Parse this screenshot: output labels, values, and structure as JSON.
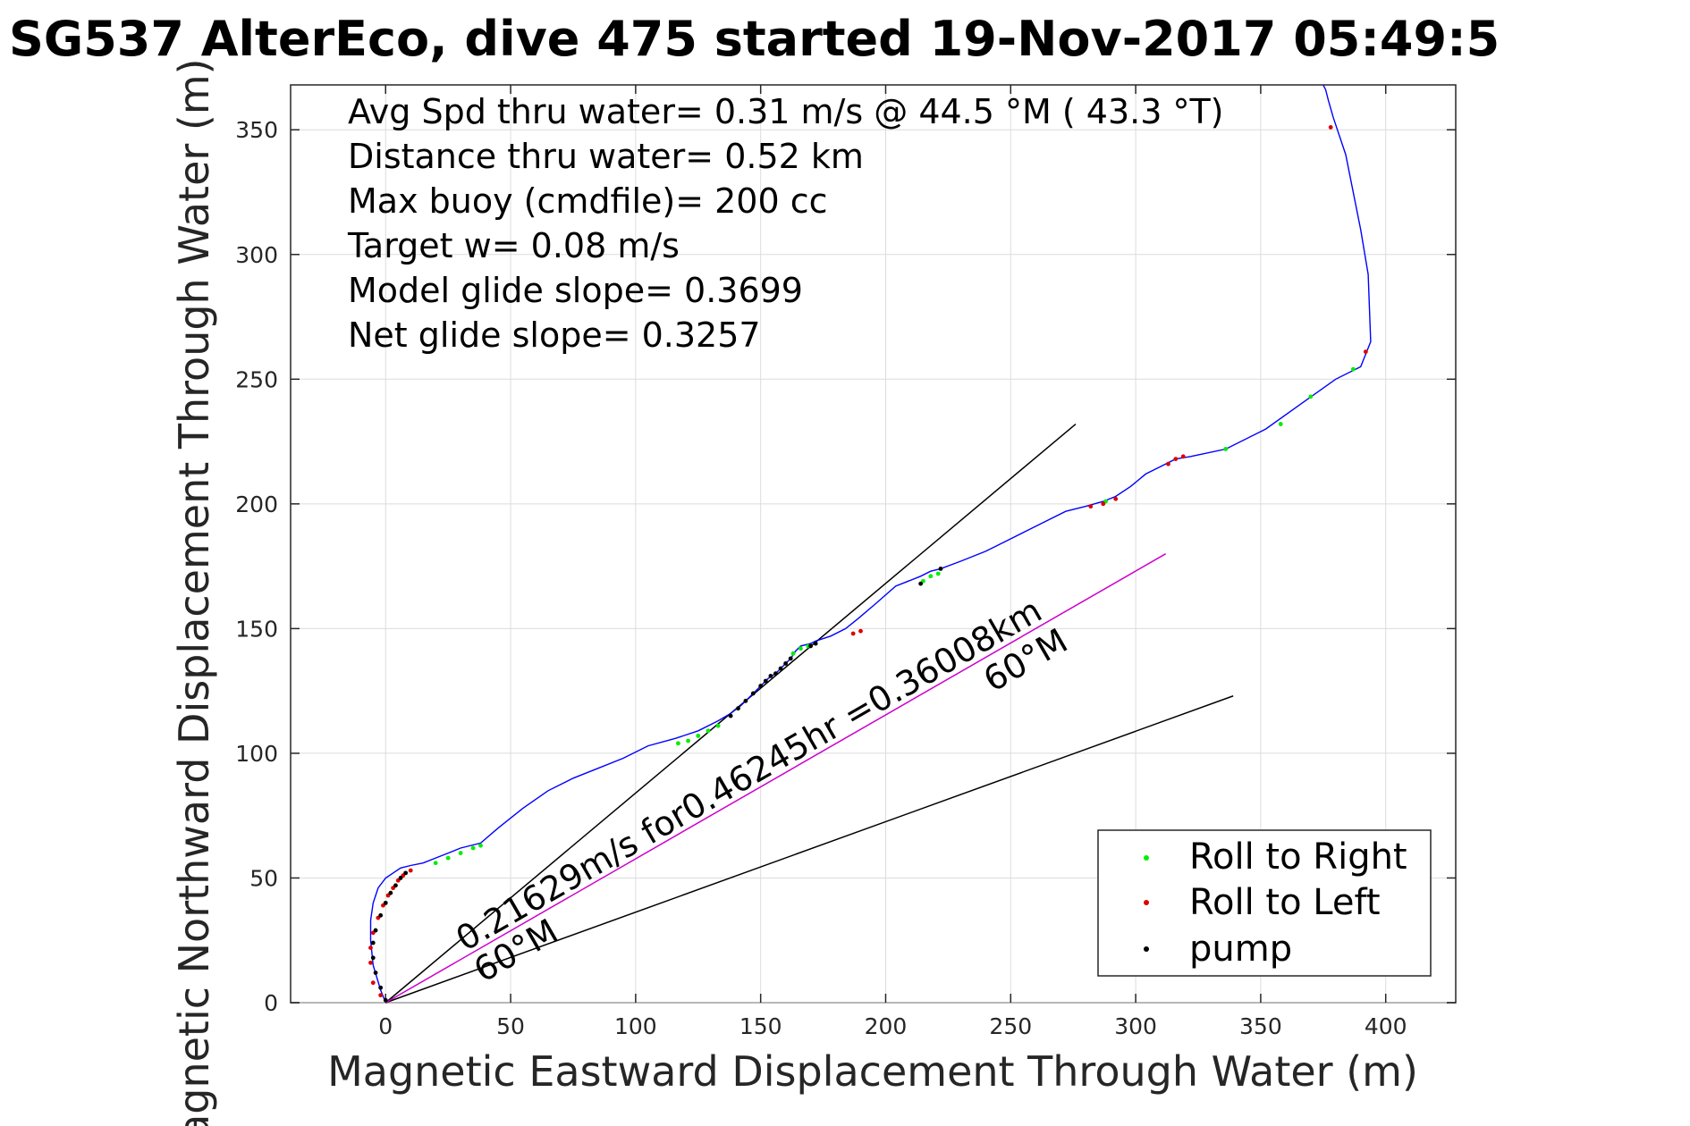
{
  "chart_data": {
    "type": "line",
    "title": "SG537 AlterEco, dive 475 started 19-Nov-2017 05:49:5",
    "xlabel": "Magnetic Eastward Displacement Through Water (m)",
    "ylabel": "Magnetic Northward Displacement Through Water (m)",
    "xlim": [
      -38,
      428
    ],
    "ylim": [
      0,
      368
    ],
    "xticks": [
      0,
      50,
      100,
      150,
      200,
      250,
      300,
      350,
      400
    ],
    "yticks": [
      0,
      50,
      100,
      150,
      200,
      250,
      300,
      350
    ],
    "grid": true,
    "legend_position": "bottom-right",
    "annotations": [
      "Avg Spd thru water=  0.31 m/s @  44.5 °M ( 43.3 °T)",
      "Distance thru water=  0.52 km",
      "Max buoy (cmdfile)= 200 cc",
      "Target w= 0.08 m/s",
      "Model glide slope= 0.3699",
      "Net glide slope= 0.3257"
    ],
    "rotated_labels": {
      "current": "0.21629m/s for0.46245hr =0.36008km",
      "heading_upper": "60°M",
      "heading_lower": "60°M"
    },
    "track": {
      "color": "#0000ff",
      "x": [
        0,
        -2,
        -5,
        -6,
        -6,
        -5,
        -3,
        0,
        3,
        6,
        10,
        15,
        20,
        25,
        30,
        38,
        45,
        55,
        65,
        75,
        85,
        95,
        105,
        116,
        125,
        133,
        138,
        142,
        146,
        150,
        153,
        156,
        159,
        162,
        164,
        166,
        170,
        172,
        178,
        184,
        189,
        196,
        204,
        214,
        218,
        222,
        230,
        240,
        248,
        256,
        264,
        272,
        280,
        287,
        292,
        298,
        304,
        310,
        316,
        322,
        336,
        352,
        366,
        380,
        390,
        394,
        393,
        390,
        384,
        379,
        377,
        376,
        374,
        371
      ],
      "y": [
        0,
        5,
        15,
        25,
        33,
        40,
        46,
        50,
        52,
        54,
        55,
        56,
        58,
        60,
        62,
        64,
        70,
        78,
        85,
        90,
        94,
        98,
        103,
        106,
        109,
        113,
        116,
        119,
        123,
        127,
        130,
        132,
        135,
        138,
        141,
        143,
        144,
        145,
        147,
        150,
        154,
        160,
        167,
        171,
        173,
        174,
        177,
        181,
        185,
        189,
        193,
        197,
        199,
        201,
        203,
        207,
        212,
        215,
        218,
        219,
        222,
        230,
        240,
        250,
        255,
        265,
        292,
        310,
        340,
        355,
        362,
        366,
        370,
        375
      ]
    },
    "course_lines": [
      {
        "name": "black-upper",
        "color": "#000000",
        "x": [
          0,
          276
        ],
        "y": [
          0,
          232
        ]
      },
      {
        "name": "black-lower",
        "color": "#000000",
        "x": [
          0,
          339
        ],
        "y": [
          0,
          123
        ]
      },
      {
        "name": "magenta",
        "color": "#cc00cc",
        "x": [
          0,
          312
        ],
        "y": [
          0,
          180
        ]
      }
    ],
    "markers": {
      "roll_right": {
        "name": "Roll to Right",
        "color": "#00ee00",
        "x": [
          20,
          25,
          30,
          35,
          38,
          117,
          121,
          125,
          129,
          133,
          163,
          166,
          169,
          215,
          218,
          221,
          288,
          358,
          370,
          387,
          336
        ],
        "y": [
          56,
          58,
          60,
          62,
          63,
          104,
          105,
          107,
          109,
          111,
          140,
          142,
          143,
          169,
          171,
          172,
          201,
          232,
          243,
          254,
          222
        ]
      },
      "roll_left": {
        "name": "Roll to Left",
        "color": "#dd0000",
        "x": [
          -5,
          -6,
          -6,
          -5,
          -3,
          -1,
          1,
          3,
          5,
          7,
          10,
          -2,
          187,
          190,
          282,
          287,
          292,
          313,
          316,
          319,
          392,
          378
        ],
        "y": [
          8,
          16,
          22,
          28,
          34,
          39,
          43,
          46,
          49,
          51,
          53,
          3,
          148,
          149,
          199,
          200,
          202,
          216,
          218,
          219,
          261,
          351
        ]
      },
      "pump": {
        "name": "pump",
        "color": "#000000",
        "x": [
          0,
          -2,
          -4,
          -5,
          -5,
          -4,
          -2,
          0,
          2,
          4,
          6,
          8,
          138,
          141,
          144,
          147,
          150,
          152,
          154,
          156,
          158,
          160,
          162,
          170,
          172,
          214,
          222
        ],
        "y": [
          1,
          6,
          12,
          18,
          24,
          29,
          35,
          40,
          44,
          47,
          50,
          52,
          115,
          118,
          121,
          124,
          127,
          129,
          131,
          132,
          134,
          136,
          138,
          143,
          144,
          168,
          174
        ]
      }
    },
    "legend": [
      "Roll to Right",
      "Roll to Left",
      "pump"
    ]
  }
}
